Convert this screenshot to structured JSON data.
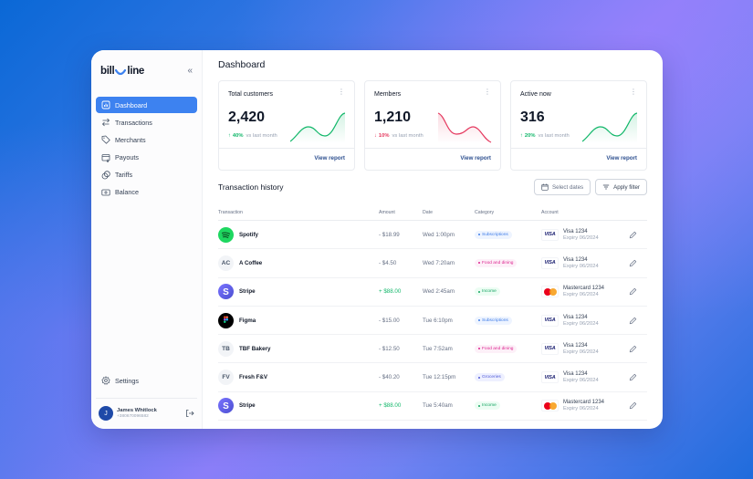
{
  "app": {
    "logo_left": "bill",
    "logo_right": "line",
    "collapse_icon": "«"
  },
  "sidebar": {
    "items": [
      {
        "label": "Dashboard",
        "icon": "chart-icon",
        "active": true
      },
      {
        "label": "Transactions",
        "icon": "arrows-icon",
        "active": false
      },
      {
        "label": "Merchants",
        "icon": "tag-icon",
        "active": false
      },
      {
        "label": "Payouts",
        "icon": "payout-icon",
        "active": false
      },
      {
        "label": "Tariffs",
        "icon": "coins-icon",
        "active": false
      },
      {
        "label": "Balance",
        "icon": "balance-icon",
        "active": false
      }
    ],
    "settings_label": "Settings",
    "user": {
      "initial": "J",
      "name": "James Whitlock",
      "phone": "+380670096582"
    }
  },
  "main": {
    "title": "Dashboard",
    "cards": [
      {
        "title": "Total customers",
        "value": "2,420",
        "change": "40%",
        "direction": "up",
        "arrow": "↑",
        "suffix": "vs last month",
        "link": "View report"
      },
      {
        "title": "Members",
        "value": "1,210",
        "change": "10%",
        "direction": "down",
        "arrow": "↓",
        "suffix": "vs last month",
        "link": "View report"
      },
      {
        "title": "Active now",
        "value": "316",
        "change": "20%",
        "direction": "up",
        "arrow": "↑",
        "suffix": "vs last month",
        "link": "View report"
      }
    ],
    "history": {
      "title": "Transaction history",
      "select_dates": "Select dates",
      "apply_filter": "Apply filter",
      "columns": [
        "Transaction",
        "Amount",
        "Date",
        "Category",
        "Account"
      ],
      "rows": [
        {
          "name": "Spotify",
          "logo": "spotify",
          "initials": "",
          "amount": "- $18.99",
          "positive": false,
          "date": "Wed 1:00pm",
          "category": "Subscriptions",
          "account": "Visa 1234",
          "brand": "visa",
          "expiry": "Expiry 06/2024"
        },
        {
          "name": "A Coffee",
          "logo": "initials",
          "initials": "AC",
          "amount": "- $4.50",
          "positive": false,
          "date": "Wed 7:20am",
          "category": "Food and dining",
          "account": "Visa 1234",
          "brand": "visa",
          "expiry": "Expiry 06/2024"
        },
        {
          "name": "Stripe",
          "logo": "stripe",
          "initials": "",
          "amount": "+ $88.00",
          "positive": true,
          "date": "Wed 2:45am",
          "category": "Income",
          "account": "Mastercard 1234",
          "brand": "mastercard",
          "expiry": "Expiry 06/2024"
        },
        {
          "name": "Figma",
          "logo": "figma",
          "initials": "",
          "amount": "- $15.00",
          "positive": false,
          "date": "Tue 6:10pm",
          "category": "Subscriptions",
          "account": "Visa 1234",
          "brand": "visa",
          "expiry": "Expiry 06/2024"
        },
        {
          "name": "TBF Bakery",
          "logo": "initials",
          "initials": "TB",
          "amount": "- $12.50",
          "positive": false,
          "date": "Tue 7:52am",
          "category": "Food and dining",
          "account": "Visa 1234",
          "brand": "visa",
          "expiry": "Expiry 06/2024"
        },
        {
          "name": "Fresh F&V",
          "logo": "initials",
          "initials": "FV",
          "amount": "- $40.20",
          "positive": false,
          "date": "Tue 12:15pm",
          "category": "Groceries",
          "account": "Visa 1234",
          "brand": "visa",
          "expiry": "Expiry 06/2024"
        },
        {
          "name": "Stripe",
          "logo": "stripe",
          "initials": "",
          "amount": "+ $88.00",
          "positive": true,
          "date": "Tue 5:40am",
          "category": "Income",
          "account": "Mastercard 1234",
          "brand": "mastercard",
          "expiry": "Expiry 06/2024"
        }
      ]
    }
  },
  "colors": {
    "accent": "#3d82f0",
    "positive": "#12b76a",
    "negative": "#e5395f",
    "categories": {
      "Subscriptions": {
        "bg": "#eef4ff",
        "fg": "#3e7ce8"
      },
      "Food and dining": {
        "bg": "#fdf0f8",
        "fg": "#dd2590"
      },
      "Income": {
        "bg": "#ecfdf3",
        "fg": "#12a360"
      },
      "Groceries": {
        "bg": "#eef0ff",
        "fg": "#4e5ad8"
      }
    }
  }
}
